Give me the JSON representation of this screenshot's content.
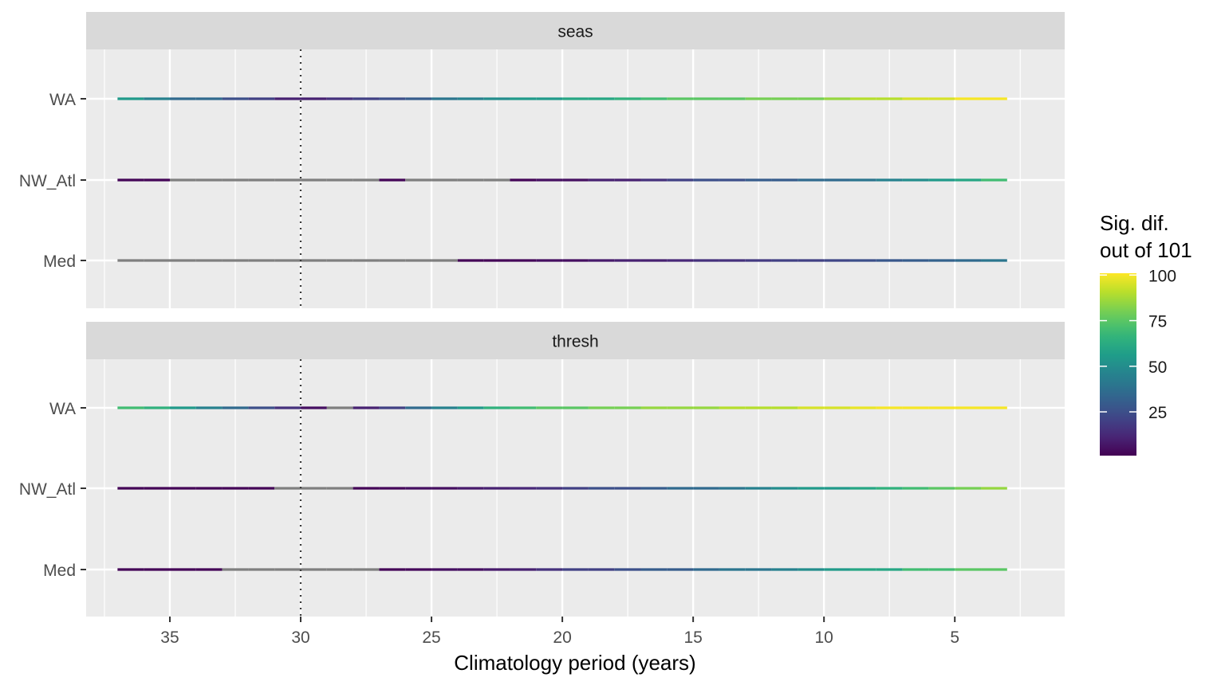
{
  "chart_data": {
    "type": "segment-heat-strip",
    "facets": [
      {
        "name": "seas",
        "rows": [
          {
            "label": "WA",
            "values": [
              55,
              45,
              35,
              35,
              25,
              20,
              10,
              10,
              15,
              20,
              25,
              30,
              40,
              45,
              50,
              55,
              55,
              60,
              60,
              65,
              70,
              75,
              75,
              75,
              80,
              80,
              80,
              85,
              90,
              90,
              95,
              95,
              100,
              100
            ]
          },
          {
            "label": "NW_Atl",
            "values": [
              2,
              2,
              null,
              null,
              null,
              null,
              null,
              null,
              null,
              null,
              2,
              null,
              null,
              null,
              null,
              2,
              5,
              5,
              10,
              10,
              15,
              20,
              25,
              25,
              30,
              30,
              35,
              35,
              40,
              45,
              50,
              55,
              60,
              70
            ]
          },
          {
            "label": "Med",
            "values": [
              null,
              null,
              null,
              null,
              null,
              null,
              null,
              null,
              null,
              null,
              null,
              null,
              null,
              2,
              2,
              3,
              5,
              5,
              8,
              10,
              10,
              12,
              15,
              15,
              18,
              20,
              20,
              22,
              25,
              28,
              30,
              32,
              35,
              40
            ]
          }
        ]
      },
      {
        "name": "thresh",
        "rows": [
          {
            "label": "WA",
            "values": [
              70,
              65,
              55,
              45,
              35,
              25,
              15,
              5,
              null,
              10,
              20,
              35,
              45,
              55,
              65,
              70,
              75,
              75,
              80,
              80,
              85,
              85,
              85,
              90,
              90,
              90,
              95,
              95,
              98,
              100,
              100,
              100,
              100,
              100
            ]
          },
          {
            "label": "NW_Atl",
            "values": [
              2,
              2,
              2,
              2,
              2,
              2,
              null,
              null,
              null,
              2,
              3,
              5,
              5,
              8,
              10,
              12,
              15,
              20,
              25,
              25,
              30,
              35,
              35,
              40,
              45,
              50,
              55,
              55,
              60,
              65,
              70,
              75,
              80,
              85
            ]
          },
          {
            "label": "Med",
            "values": [
              2,
              2,
              2,
              2,
              null,
              null,
              null,
              null,
              null,
              null,
              2,
              3,
              5,
              5,
              8,
              10,
              15,
              20,
              20,
              25,
              30,
              30,
              35,
              40,
              40,
              45,
              50,
              55,
              60,
              60,
              70,
              70,
              75,
              75
            ]
          }
        ]
      }
    ],
    "x_values": [
      37,
      36,
      35,
      34,
      33,
      32,
      31,
      30,
      29,
      28,
      27,
      26,
      25,
      24,
      23,
      22,
      21,
      20,
      19,
      18,
      17,
      16,
      15,
      14,
      13,
      12,
      11,
      10,
      9,
      8,
      7,
      6,
      5,
      4
    ],
    "x_segment_width": 1,
    "na_color": "#7f7f7f",
    "xlim": [
      38.2,
      0.8
    ],
    "x_reversed": true,
    "x_ticks": [
      35,
      30,
      25,
      20,
      15,
      10,
      5
    ],
    "x_tick_labels": [
      "35",
      "30",
      "25",
      "20",
      "15",
      "10",
      "5"
    ],
    "xlabel": "Climatology period (years)",
    "ylabel": "",
    "reference_line_x": 30,
    "legend": {
      "title_line1": "Sig. dif.",
      "title_line2": "out of 101",
      "ticks": [
        25,
        50,
        75,
        100
      ],
      "tick_labels": [
        "25",
        "50",
        "75",
        "100"
      ],
      "range": [
        1,
        101
      ],
      "placement": "right"
    },
    "colors": {
      "panel_bg": "#ebebeb",
      "strip_bg": "#d9d9d9",
      "grid": "#ffffff",
      "palette": "viridis"
    }
  }
}
